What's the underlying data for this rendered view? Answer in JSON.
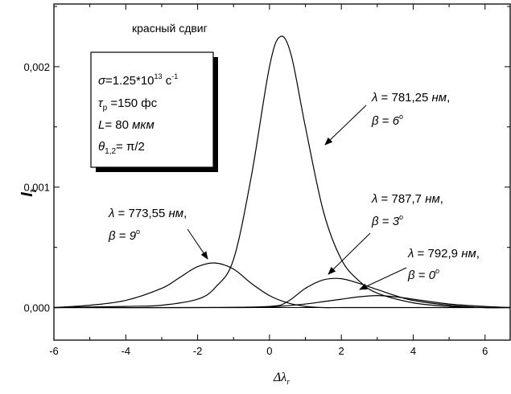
{
  "chart_data": {
    "type": "line",
    "title": "красный сдвиг",
    "xlabel": {
      "main": "Δλ",
      "sub": "r"
    },
    "ylabel": {
      "main": "I",
      "sub": "r"
    },
    "xlim": [
      -6,
      6.7
    ],
    "ylim": [
      -0.00027,
      0.00252
    ],
    "x_ticks": [
      -6,
      -4,
      -2,
      0,
      2,
      4,
      6
    ],
    "x_tick_labels": [
      "-6",
      "-4",
      "-2",
      "0",
      "2",
      "4",
      "6"
    ],
    "y_ticks": [
      0,
      0.001,
      0.002
    ],
    "y_tick_labels": [
      "0,000",
      "0,001",
      "0,002"
    ],
    "grid": false,
    "legend": "box top-left",
    "legend_box": [
      {
        "sym": "σ",
        "text": "=1.25*10",
        "sup": "13",
        "text2": " c",
        "sup2": "-1"
      },
      {
        "sym": "τ",
        "sub": "p",
        "text": " =150 фс"
      },
      {
        "sym": "L",
        "text": "= 80 ",
        "unit": "мкм"
      },
      {
        "sym": "θ",
        "sub": "1,2",
        "text": "= π/2"
      }
    ],
    "series": [
      {
        "label1": {
          "sym": "λ",
          "text": " = 781,25 ",
          "unit": "нм",
          "tail": ","
        },
        "label2": {
          "sym": "β",
          "text": " = ",
          "val": "6",
          "deg": "o"
        },
        "x": [
          -6,
          -4,
          -3,
          -2,
          -1.5,
          -1,
          -0.5,
          0,
          0.3,
          0.6,
          1,
          1.5,
          2,
          2.5,
          3,
          4,
          5,
          6,
          6.7
        ],
        "values": [
          0,
          1e-05,
          2e-05,
          7e-05,
          0.00017,
          0.0004,
          0.0011,
          0.002,
          0.00225,
          0.0021,
          0.0015,
          0.0008,
          0.0004,
          0.00022,
          0.00012,
          4e-05,
          1e-05,
          0,
          0
        ]
      },
      {
        "label1": {
          "sym": "λ",
          "text": " = 773,55 ",
          "unit": "нм",
          "tail": ","
        },
        "label2": {
          "sym": "β",
          "text": " = ",
          "val": "9",
          "deg": "o"
        },
        "x": [
          -6,
          -5,
          -4,
          -3,
          -2.5,
          -2,
          -1.5,
          -1,
          -0.5,
          0,
          0.5,
          1,
          1.5,
          2,
          3,
          4,
          6.7
        ],
        "values": [
          0,
          2e-05,
          6e-05,
          0.00016,
          0.00025,
          0.00034,
          0.00037,
          0.00032,
          0.0002,
          0.0001,
          4e-05,
          1e-05,
          0,
          0,
          0,
          0,
          0
        ]
      },
      {
        "label1": {
          "sym": "λ",
          "text": " = 787,7 ",
          "unit": "нм",
          "tail": ","
        },
        "label2": {
          "sym": "β",
          "text": " = ",
          "val": "3",
          "deg": "o"
        },
        "x": [
          -6,
          -2,
          0,
          0.5,
          1,
          1.5,
          2,
          2.5,
          3,
          3.5,
          4,
          5,
          6,
          6.7
        ],
        "values": [
          0,
          0,
          1e-05,
          5e-05,
          0.00016,
          0.00023,
          0.00024,
          0.0002,
          0.00015,
          0.0001,
          6e-05,
          2e-05,
          0,
          0
        ]
      },
      {
        "label1": {
          "sym": "λ",
          "text": " = 792,9 ",
          "unit": "нм",
          "tail": ","
        },
        "label2": {
          "sym": "β",
          "text": " = ",
          "val": "0",
          "deg": "o"
        },
        "x": [
          -6,
          -1,
          0,
          1,
          1.5,
          2,
          2.5,
          3,
          3.5,
          4,
          5,
          6,
          6.7
        ],
        "values": [
          0,
          0,
          5e-06,
          3e-05,
          5e-05,
          7e-05,
          9e-05,
          0.0001,
          9e-05,
          7e-05,
          3e-05,
          1e-05,
          0
        ]
      }
    ]
  }
}
